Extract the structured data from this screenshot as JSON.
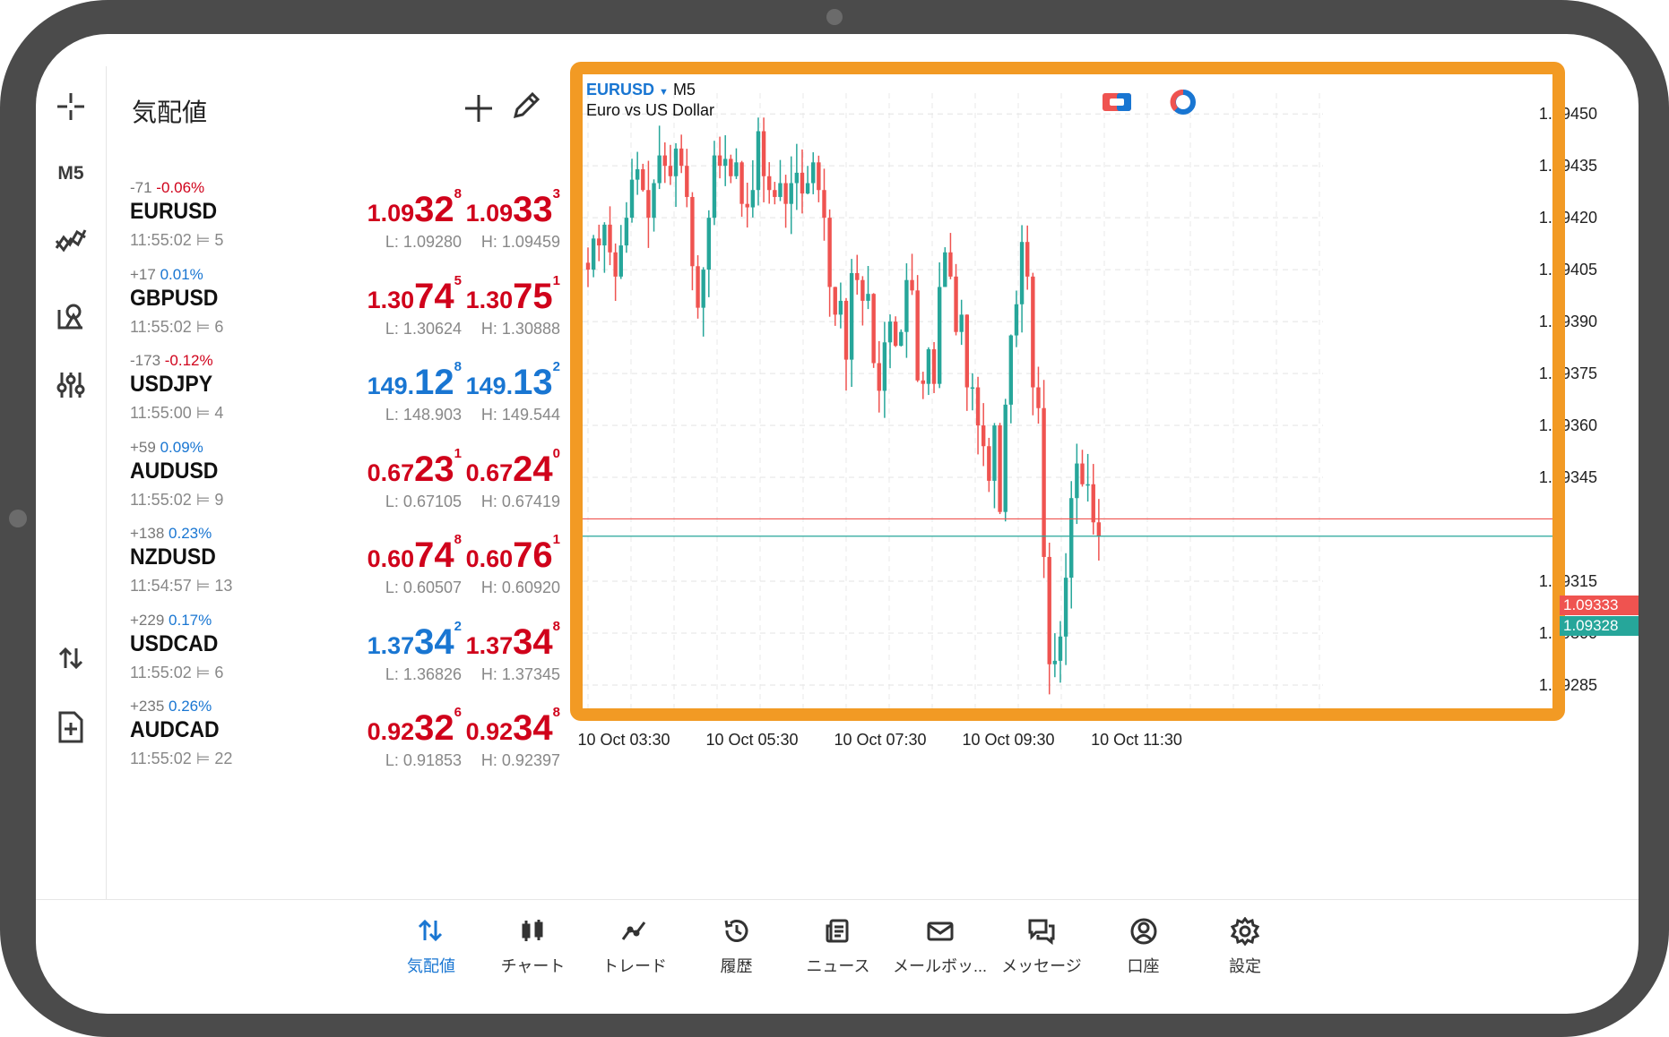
{
  "rail": {
    "timeframe": "M5"
  },
  "quotes": {
    "title": "気配値",
    "items": [
      {
        "change_points": "-71",
        "change_pct": "-0.06%",
        "direction": "neg",
        "symbol": "EURUSD",
        "time": "11:55:02",
        "spread": "5",
        "bid": {
          "p1": "1.09",
          "p2": "32",
          "p3": "8",
          "color": "red"
        },
        "ask": {
          "p1": "1.09",
          "p2": "33",
          "p3": "3",
          "color": "red"
        },
        "low": "L: 1.09280",
        "high": "H: 1.09459"
      },
      {
        "change_points": "+17",
        "change_pct": "0.01%",
        "direction": "pos",
        "symbol": "GBPUSD",
        "time": "11:55:02",
        "spread": "6",
        "bid": {
          "p1": "1.30",
          "p2": "74",
          "p3": "5",
          "color": "red"
        },
        "ask": {
          "p1": "1.30",
          "p2": "75",
          "p3": "1",
          "color": "red"
        },
        "low": "L: 1.30624",
        "high": "H: 1.30888"
      },
      {
        "change_points": "-173",
        "change_pct": "-0.12%",
        "direction": "neg",
        "symbol": "USDJPY",
        "time": "11:55:00",
        "spread": "4",
        "bid": {
          "p1": "149.",
          "p2": "12",
          "p3": "8",
          "color": "blue"
        },
        "ask": {
          "p1": "149.",
          "p2": "13",
          "p3": "2",
          "color": "blue"
        },
        "low": "L: 148.903",
        "high": "H: 149.544"
      },
      {
        "change_points": "+59",
        "change_pct": "0.09%",
        "direction": "pos",
        "symbol": "AUDUSD",
        "time": "11:55:02",
        "spread": "9",
        "bid": {
          "p1": "0.67",
          "p2": "23",
          "p3": "1",
          "color": "red"
        },
        "ask": {
          "p1": "0.67",
          "p2": "24",
          "p3": "0",
          "color": "red"
        },
        "low": "L: 0.67105",
        "high": "H: 0.67419"
      },
      {
        "change_points": "+138",
        "change_pct": "0.23%",
        "direction": "pos",
        "symbol": "NZDUSD",
        "time": "11:54:57",
        "spread": "13",
        "bid": {
          "p1": "0.60",
          "p2": "74",
          "p3": "8",
          "color": "red"
        },
        "ask": {
          "p1": "0.60",
          "p2": "76",
          "p3": "1",
          "color": "red"
        },
        "low": "L: 0.60507",
        "high": "H: 0.60920"
      },
      {
        "change_points": "+229",
        "change_pct": "0.17%",
        "direction": "pos",
        "symbol": "USDCAD",
        "time": "11:55:02",
        "spread": "6",
        "bid": {
          "p1": "1.37",
          "p2": "34",
          "p3": "2",
          "color": "blue"
        },
        "ask": {
          "p1": "1.37",
          "p2": "34",
          "p3": "8",
          "color": "red"
        },
        "low": "L: 1.36826",
        "high": "H: 1.37345"
      },
      {
        "change_points": "+235",
        "change_pct": "0.26%",
        "direction": "pos",
        "symbol": "AUDCAD",
        "time": "11:55:02",
        "spread": "22",
        "bid": {
          "p1": "0.92",
          "p2": "32",
          "p3": "6",
          "color": "red"
        },
        "ask": {
          "p1": "0.92",
          "p2": "34",
          "p3": "8",
          "color": "red"
        },
        "low": "L: 0.91853",
        "high": "H: 0.92397"
      }
    ]
  },
  "chart": {
    "symbol": "EURUSD",
    "timeframe": "M5",
    "description": "Euro vs US Dollar",
    "ask_line": "1.09333",
    "bid_line": "1.09328",
    "up_color": "#26a69a",
    "down_color": "#ef5350"
  },
  "chart_data": {
    "type": "candlestick",
    "y_ticks": [
      "1.09450",
      "1.09435",
      "1.09420",
      "1.09405",
      "1.09390",
      "1.09375",
      "1.09360",
      "1.09345",
      "1.09315",
      "1.09300",
      "1.09285"
    ],
    "x_ticks": [
      "10 Oct 03:30",
      "10 Oct 05:30",
      "10 Oct 07:30",
      "10 Oct 09:30",
      "10 Oct 11:30"
    ],
    "ylim": [
      1.09278,
      1.09456
    ],
    "grid": true,
    "close_series": [
      1.09405,
      1.09414,
      1.09412,
      1.09418,
      1.0941,
      1.09403,
      1.09412,
      1.0942,
      1.09431,
      1.09434,
      1.09428,
      1.0942,
      1.0943,
      1.09438,
      1.09435,
      1.09432,
      1.0944,
      1.09435,
      1.09426,
      1.09406,
      1.09394,
      1.09405,
      1.0942,
      1.09438,
      1.09435,
      1.09437,
      1.09432,
      1.09436,
      1.09424,
      1.09423,
      1.09428,
      1.09445,
      1.09432,
      1.09428,
      1.09426,
      1.0943,
      1.09424,
      1.0943,
      1.09433,
      1.09427,
      1.0943,
      1.09436,
      1.09428,
      1.0942,
      1.094,
      1.09392,
      1.09396,
      1.09379,
      1.09404,
      1.09402,
      1.09396,
      1.09398,
      1.09378,
      1.0937,
      1.09384,
      1.0939,
      1.09383,
      1.09387,
      1.09402,
      1.09399,
      1.09373,
      1.09372,
      1.09382,
      1.09372,
      1.094,
      1.0941,
      1.09403,
      1.09387,
      1.09392,
      1.09371,
      1.09371,
      1.0936,
      1.09354,
      1.09344,
      1.0936,
      1.09335,
      1.09366,
      1.09386,
      1.09395,
      1.09413,
      1.09403,
      1.09371,
      1.09365,
      1.09322,
      1.09291,
      1.09292,
      1.09299,
      1.09316,
      1.09339,
      1.09349,
      1.09343,
      1.09343,
      1.09332,
      1.09328
    ]
  },
  "nav": {
    "items": [
      {
        "label": "気配値",
        "icon": "quotes-arrows-icon",
        "active": true
      },
      {
        "label": "チャート",
        "icon": "candles-icon",
        "active": false
      },
      {
        "label": "トレード",
        "icon": "trade-line-icon",
        "active": false
      },
      {
        "label": "履歴",
        "icon": "history-icon",
        "active": false
      },
      {
        "label": "ニュース",
        "icon": "news-icon",
        "active": false
      },
      {
        "label": "メールボッ...",
        "icon": "mail-icon",
        "active": false
      },
      {
        "label": "メッセージ",
        "icon": "messages-icon",
        "active": false
      },
      {
        "label": "口座",
        "icon": "account-icon",
        "active": false
      },
      {
        "label": "設定",
        "icon": "settings-icon",
        "active": false
      }
    ]
  }
}
